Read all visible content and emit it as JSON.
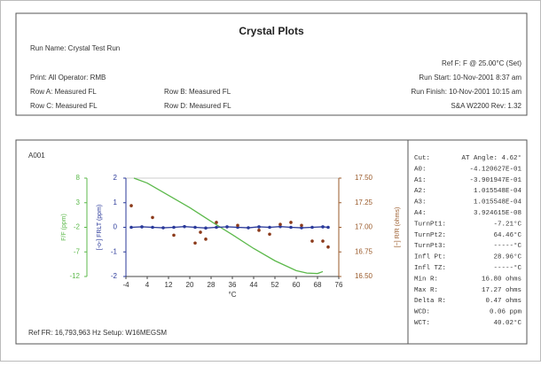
{
  "header": {
    "title": "Crystal Plots",
    "run_name": "Run Name: Crystal Test Run",
    "ref_f": "Ref F: F @ 25.00°C (Set)",
    "print": "Print: All   Operator: RMB",
    "run_start": "Run Start: 10-Nov-2001   8:37 am",
    "row_a": "Row A: Measured FL",
    "row_b": "Row B: Measured FL",
    "run_finish": "Run Finish: 10-Nov-2001  10:15 am",
    "row_c": "Row C: Measured FL",
    "row_d": "Row D: Measured FL",
    "rev": "S&A W2200 Rev: 1.32"
  },
  "plot_id": "A001",
  "footer": "Ref FR: 16,793,963 Hz   Setup: W16MEGSM",
  "stats": [
    [
      "Cut:",
      "AT Angle: 4.62°"
    ],
    [
      "A0:",
      "-4.120627E-01"
    ],
    [
      "A1:",
      "-3.901947E-01"
    ],
    [
      "A2:",
      "1.015548E-04"
    ],
    [
      "A3:",
      "1.015548E-04"
    ],
    [
      "A4:",
      "3.924615E-08"
    ],
    [
      "TurnPt1:",
      "-7.21°C"
    ],
    [
      "TurnPt2:",
      "64.46°C"
    ],
    [
      "TurnPt3:",
      "-----°C"
    ],
    [
      "Infl Pt:",
      "28.96°C"
    ],
    [
      "Infl TZ:",
      "-----°C"
    ],
    [
      "Min R:",
      "16.80 ohms"
    ],
    [
      "Max R:",
      "17.27 ohms"
    ],
    [
      "Delta R:",
      "0.47 ohms"
    ],
    [
      "WCD:",
      "0.06 ppm"
    ],
    [
      "WCT:",
      "40.02°C"
    ]
  ],
  "chart_data": {
    "type": "line",
    "xlabel": "°C",
    "ylabel": "[-o-] FRLT (ppm)",
    "y2label": "[~] R/R (ohms)",
    "y3label": "F/F (ppm)",
    "xlim": [
      -4,
      76
    ],
    "xticks": [
      -4,
      4,
      12,
      20,
      28,
      36,
      44,
      52,
      60,
      68,
      76
    ],
    "ylim": [
      -2,
      2
    ],
    "yticks": [
      2,
      1,
      0,
      -1,
      -2
    ],
    "y2lim": [
      16.5,
      17.5
    ],
    "y2ticks": [
      {
        "value": 17.5,
        "label": "17.50"
      },
      {
        "value": 17.25,
        "label": "17.25"
      },
      {
        "value": 17,
        "label": "17.00"
      },
      {
        "value": 16.75,
        "label": "16.75"
      },
      {
        "value": 16.5,
        "label": "16.50"
      }
    ],
    "y3lim": [
      -12,
      8
    ],
    "y3ticks": [
      8,
      3,
      -2,
      -7,
      -12
    ],
    "series": [
      {
        "axis": "y3",
        "color": "#5cb94b",
        "mode": "line",
        "x": [
          -1,
          4,
          12,
          20,
          28,
          36,
          44,
          52,
          60,
          64,
          68,
          70
        ],
        "values": [
          8,
          7,
          4.5,
          2,
          -0.8,
          -3.5,
          -6.3,
          -8.8,
          -10.8,
          -11.3,
          -11.4,
          -11
        ]
      },
      {
        "axis": "y",
        "color": "#2b3a9a",
        "mode": "line+markers",
        "x": [
          -2,
          2,
          6,
          10,
          14,
          18,
          22,
          26,
          30,
          34,
          38,
          42,
          46,
          50,
          54,
          58,
          62,
          66,
          70,
          72
        ],
        "values": [
          0,
          0.02,
          0,
          -0.02,
          0,
          0.03,
          0,
          -0.03,
          0,
          0.02,
          0,
          -0.02,
          0.02,
          0,
          0.03,
          0,
          -0.02,
          0,
          0.02,
          0
        ]
      },
      {
        "axis": "y2",
        "color": "#8b3a1a",
        "mode": "markers",
        "x": [
          -2,
          6,
          14,
          22,
          24,
          26,
          30,
          38,
          46,
          50,
          54,
          58,
          62,
          66,
          70,
          72
        ],
        "values": [
          17.22,
          17.1,
          16.92,
          16.84,
          16.95,
          16.88,
          17.05,
          17.02,
          16.97,
          16.93,
          17.03,
          17.05,
          17.02,
          16.86,
          16.86,
          16.8
        ]
      }
    ]
  }
}
